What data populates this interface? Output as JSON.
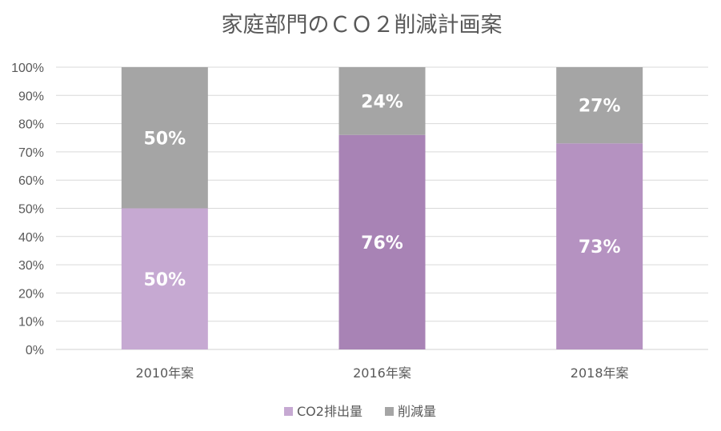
{
  "chart_data": {
    "type": "bar",
    "stacked": true,
    "normalized_percent": true,
    "title": "家庭部門のＣＯ２削減計画案",
    "categories": [
      "2010年案",
      "2016年案",
      "2018年案"
    ],
    "series": [
      {
        "name": "CO2排出量",
        "values": [
          50,
          76,
          73
        ],
        "labels": [
          "50%",
          "76%",
          "73%"
        ],
        "colors": [
          "#c6a9d2",
          "#a883b5",
          "#b592c1"
        ]
      },
      {
        "name": "削減量",
        "values": [
          50,
          24,
          27
        ],
        "labels": [
          "50%",
          "24%",
          "27%"
        ],
        "colors": [
          "#a5a5a5",
          "#a5a5a5",
          "#a5a5a5"
        ]
      }
    ],
    "yticks": [
      "0%",
      "10%",
      "20%",
      "30%",
      "40%",
      "50%",
      "60%",
      "70%",
      "80%",
      "90%",
      "100%"
    ],
    "ylim": [
      0,
      100
    ],
    "grid": true,
    "legend": {
      "position": "bottom",
      "entries": [
        {
          "label": "CO2排出量",
          "color": "#c6a9d2"
        },
        {
          "label": "削減量",
          "color": "#a5a5a5"
        }
      ]
    }
  }
}
